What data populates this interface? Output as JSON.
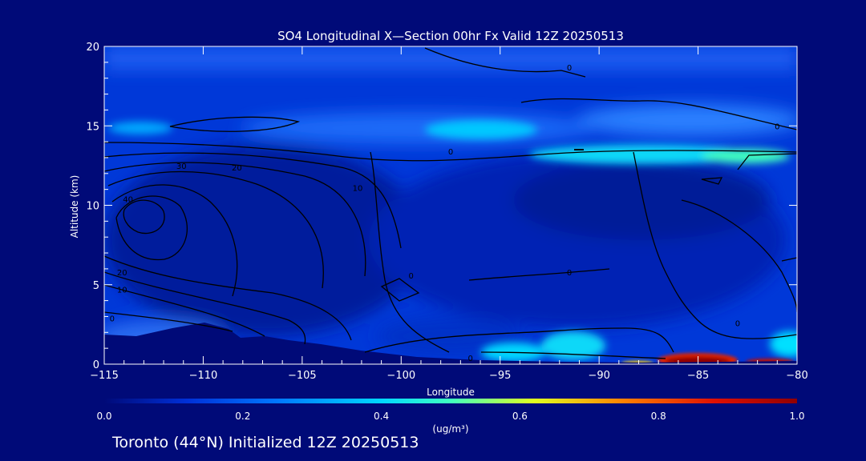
{
  "chart_data": {
    "type": "heatmap",
    "title": "SO4 Longitudinal X—Section 00hr  Fx Valid 12Z 20250513",
    "xlabel": "Longitude",
    "ylabel": "Altitude (km)",
    "xlim": [
      -115,
      -80
    ],
    "ylim": [
      0,
      20
    ],
    "x_ticks": [
      "−115",
      "−110",
      "−105",
      "−100",
      "−95",
      "−90",
      "−85",
      "−80"
    ],
    "x_tick_values": [
      -115,
      -110,
      -105,
      -100,
      -95,
      -90,
      -85,
      -80
    ],
    "y_ticks": [
      "0",
      "5",
      "10",
      "15",
      "20"
    ],
    "y_tick_values": [
      0,
      5,
      10,
      15,
      20
    ],
    "colorbar": {
      "ticks": [
        "0.0",
        "0.2",
        "0.4",
        "0.6",
        "0.8",
        "1.0"
      ],
      "tick_values": [
        0,
        0.2,
        0.4,
        0.6,
        0.8,
        1.0
      ],
      "range": [
        0,
        1
      ],
      "unit_label": "(ug/m³)",
      "colors": [
        "#000a78",
        "#0030d8",
        "#0078ff",
        "#00d8ff",
        "#40ffc0",
        "#e0ff20",
        "#ff8000",
        "#e01000",
        "#900000"
      ]
    },
    "contour_labels": [
      {
        "text": "0",
        "x": -91.5,
        "y": 18.7
      },
      {
        "text": "0",
        "x": -81,
        "y": 15.0
      },
      {
        "text": "0",
        "x": -97.5,
        "y": 13.4
      },
      {
        "text": "0",
        "x": -91.5,
        "y": 5.8
      },
      {
        "text": "0",
        "x": -99.5,
        "y": 5.6
      },
      {
        "text": "0",
        "x": -96.5,
        "y": 0.4
      },
      {
        "text": "0",
        "x": -83,
        "y": 2.6
      },
      {
        "text": "40",
        "x": -113.8,
        "y": 10.4
      },
      {
        "text": "20",
        "x": -114.1,
        "y": 5.8
      },
      {
        "text": "10",
        "x": -114.1,
        "y": 4.7
      },
      {
        "text": "0",
        "x": -114.6,
        "y": 2.9
      },
      {
        "text": "30",
        "x": -111.1,
        "y": 12.5
      },
      {
        "text": "20",
        "x": -108.3,
        "y": 12.4
      },
      {
        "text": "10",
        "x": -102.2,
        "y": 11.1
      }
    ],
    "grid": false
  },
  "footer": "Toronto (44°N) Initialized 12Z 20250513"
}
